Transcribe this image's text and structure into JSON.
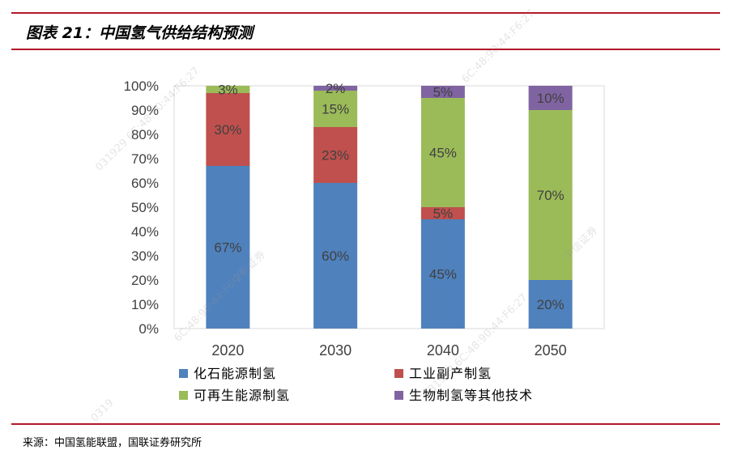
{
  "header": {
    "title": "图表 21：中国氢气供给结构预测"
  },
  "footer": {
    "source": "来源：中国氢能联盟，国联证券研究所"
  },
  "watermarks": [
    "031929 6C:48:90:44:F6:27",
    "中信证券",
    "6C:48:90:44:F6:27",
    "中信证券",
    "6C:48:90:44:F6:27",
    "031929 6C:48:90:44:F6:27",
    "0319"
  ],
  "chart_data": {
    "type": "bar",
    "stacked": true,
    "categories": [
      "2020",
      "2030",
      "2040",
      "2050"
    ],
    "series": [
      {
        "name": "化石能源制氢",
        "color": "#4f81bd",
        "values": [
          67,
          60,
          45,
          20
        ],
        "labels": [
          "67%",
          "60%",
          "45%",
          "20%"
        ]
      },
      {
        "name": "工业副产制氢",
        "color": "#c0504d",
        "values": [
          30,
          23,
          5,
          0
        ],
        "labels": [
          "30%",
          "23%",
          "5%",
          ""
        ]
      },
      {
        "name": "可再生能源制氢",
        "color": "#9bbb59",
        "values": [
          3,
          15,
          45,
          70
        ],
        "labels": [
          "3%",
          "15%",
          "45%",
          "70%"
        ]
      },
      {
        "name": "生物制氢等其他技术",
        "color": "#8064a2",
        "values": [
          0,
          2,
          5,
          10
        ],
        "labels": [
          "",
          "2%",
          "5%",
          "10%"
        ]
      }
    ],
    "ylim": [
      0,
      100
    ],
    "yticks": [
      "0%",
      "10%",
      "20%",
      "30%",
      "40%",
      "50%",
      "60%",
      "70%",
      "80%",
      "90%",
      "100%"
    ],
    "legend_position": "bottom"
  }
}
